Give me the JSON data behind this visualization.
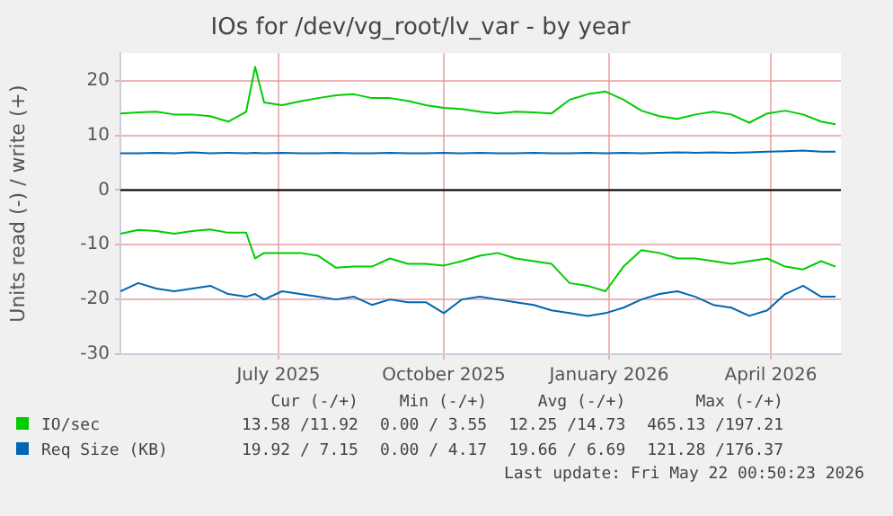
{
  "chart_data": {
    "type": "line",
    "title": "IOs for /dev/vg_root/lv_var - by year",
    "ylabel": "Units read (-) / write (+)",
    "x": [
      "2025-04-19",
      "2025-04-29",
      "2025-05-09",
      "2025-05-19",
      "2025-05-29",
      "2025-06-08",
      "2025-06-18",
      "2025-06-28",
      "2025-07-03",
      "2025-07-08",
      "2025-07-18",
      "2025-07-28",
      "2025-08-07",
      "2025-08-17",
      "2025-08-27",
      "2025-09-06",
      "2025-09-16",
      "2025-09-26",
      "2025-10-06",
      "2025-10-16",
      "2025-10-26",
      "2025-11-05",
      "2025-11-15",
      "2025-11-25",
      "2025-12-05",
      "2025-12-15",
      "2025-12-25",
      "2026-01-04",
      "2026-01-14",
      "2026-01-24",
      "2026-02-03",
      "2026-02-13",
      "2026-02-23",
      "2026-03-05",
      "2026-03-15",
      "2026-03-25",
      "2026-04-04",
      "2026-04-14",
      "2026-04-24",
      "2026-05-04",
      "2026-05-14",
      "2026-05-22"
    ],
    "series": [
      {
        "name": "IO/sec",
        "color": "#00cc00",
        "values": [
          14,
          14.2,
          14.3,
          13.8,
          13.8,
          13.5,
          12.5,
          14.3,
          22.5,
          16,
          15.5,
          16.2,
          16.8,
          17.3,
          17.5,
          16.8,
          16.8,
          16.3,
          15.5,
          15,
          14.8,
          14.3,
          14,
          14.3,
          14.2,
          14,
          16.5,
          17.5,
          18,
          16.5,
          14.5,
          13.5,
          13,
          13.8,
          14.3,
          13.8,
          12.3,
          14,
          14.5,
          13.8,
          12.5,
          12
        ]
      },
      {
        "color": "#00cc00",
        "values": [
          -8,
          -7.3,
          -7.5,
          -8,
          -7.5,
          -7.2,
          -7.8,
          -7.8,
          -12.5,
          -11.5,
          -11.5,
          -11.5,
          -12,
          -14.2,
          -14,
          -14,
          -12.5,
          -13.5,
          -13.5,
          -13.8,
          -13,
          -12,
          -11.5,
          -12.5,
          -13,
          -13.5,
          -17,
          -17.5,
          -18.5,
          -14,
          -11,
          -11.5,
          -12.5,
          -12.5,
          -13,
          -13.5,
          -13,
          -12.5,
          -14,
          -14.5,
          -13,
          -14
        ]
      },
      {
        "name": "Req Size (KB)",
        "color": "#0066b3",
        "values": [
          6.7,
          6.7,
          6.8,
          6.7,
          6.9,
          6.7,
          6.8,
          6.7,
          6.8,
          6.7,
          6.8,
          6.7,
          6.7,
          6.8,
          6.7,
          6.7,
          6.8,
          6.7,
          6.7,
          6.8,
          6.7,
          6.8,
          6.7,
          6.7,
          6.8,
          6.7,
          6.7,
          6.8,
          6.7,
          6.8,
          6.7,
          6.8,
          6.9,
          6.8,
          6.9,
          6.8,
          6.9,
          7,
          7.1,
          7.2,
          7,
          7
        ]
      },
      {
        "color": "#0066b3",
        "values": [
          -18.5,
          -17,
          -18,
          -18.5,
          -18,
          -17.5,
          -19,
          -19.5,
          -19,
          -20,
          -18.5,
          -19,
          -19.5,
          -20,
          -19.5,
          -21,
          -20,
          -20.5,
          -20.5,
          -22.5,
          -20,
          -19.5,
          -20,
          -20.5,
          -21,
          -22,
          -22.5,
          -23,
          -22.5,
          -21.5,
          -20,
          -19,
          -18.5,
          -19.5,
          -21,
          -21.5,
          -23,
          -22,
          -19,
          -17.5,
          -19.5,
          -19.5
        ]
      }
    ],
    "xlim": [
      "2025-04-19",
      "2026-05-25"
    ],
    "xticks": [
      {
        "value": "2025-07-16",
        "label": "July 2025"
      },
      {
        "value": "2025-10-16",
        "label": "October 2025"
      },
      {
        "value": "2026-01-16",
        "label": "January 2026"
      },
      {
        "value": "2026-04-16",
        "label": "April 2026"
      }
    ],
    "ylim": [
      -30,
      25
    ],
    "yticks": [
      -30,
      -20,
      -10,
      0,
      10,
      20
    ],
    "ref_lines": [
      {
        "axis": "y",
        "value": 0,
        "color": "#000000"
      }
    ],
    "grid": true,
    "legend": "bottom",
    "marker": "none",
    "annotations": [
      "Cur (-/+)",
      "Min (-/+)",
      "Avg (-/+)",
      "Max (-/+)",
      "13.58 /11.92",
      "0.00 / 3.55",
      "12.25 /14.73",
      "465.13 /197.21",
      "19.92 / 7.15",
      "0.00 / 4.17",
      "19.66 / 6.69",
      "121.28 /176.37",
      "Last update: Fri May 22 00:50:23 2026"
    ]
  }
}
